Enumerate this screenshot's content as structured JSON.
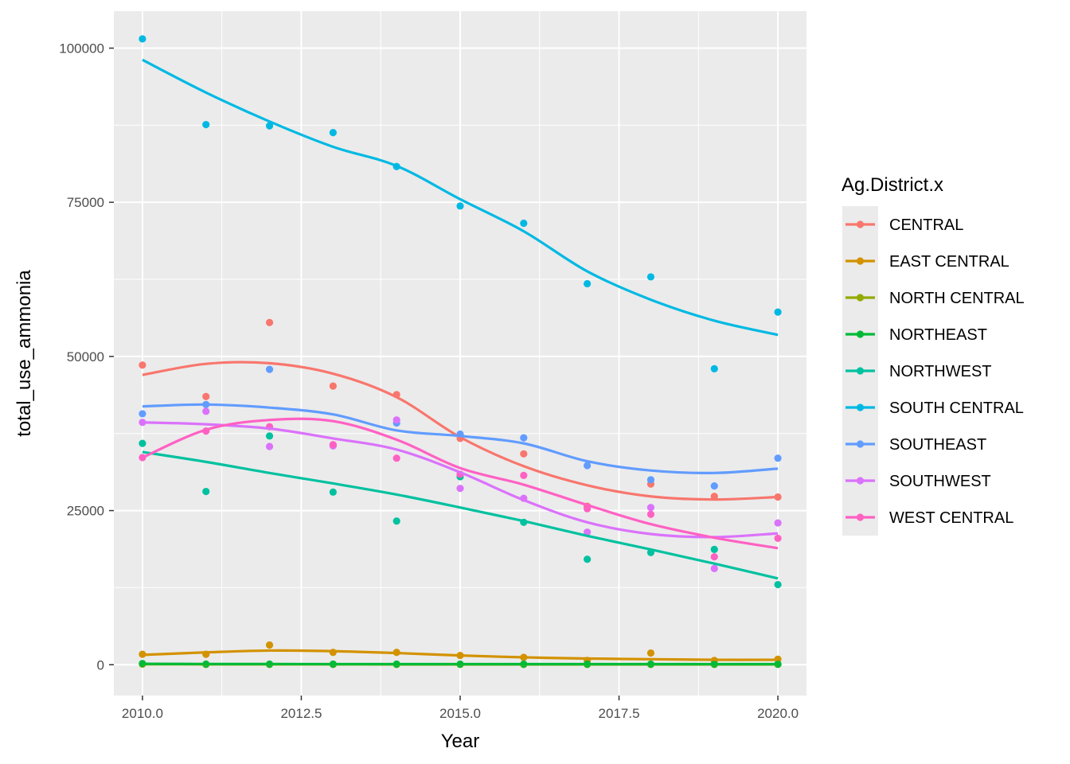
{
  "chart_data": {
    "type": "scatter",
    "title": "",
    "xlabel": "Year",
    "ylabel": "total_use_ammonia",
    "xlim": [
      2009.55,
      2020.45
    ],
    "ylim": [
      -5000,
      106000
    ],
    "x_ticks": [
      2010.0,
      2012.5,
      2015.0,
      2017.5,
      2020.0
    ],
    "x_tick_labels": [
      "2010.0",
      "2012.5",
      "2015.0",
      "2017.5",
      "2020.0"
    ],
    "y_ticks": [
      0,
      25000,
      50000,
      75000,
      100000
    ],
    "y_tick_labels": [
      "0",
      "25000",
      "50000",
      "75000",
      "100000"
    ],
    "grid": true,
    "smoothed_lines": true,
    "legend_title": "Ag.District.x",
    "legend_position": "right",
    "x": [
      2010,
      2011,
      2012,
      2013,
      2014,
      2015,
      2016,
      2017,
      2018,
      2019,
      2020
    ],
    "series": [
      {
        "name": "CENTRAL",
        "color": "#F8766D",
        "values": [
          48600,
          43500,
          55500,
          45200,
          43800,
          36700,
          34200,
          25700,
          29300,
          27300,
          27200
        ],
        "smooth": [
          47000,
          48800,
          48900,
          47200,
          43400,
          36900,
          32200,
          29100,
          27300,
          26800,
          27200
        ]
      },
      {
        "name": "EAST CENTRAL",
        "color": "#D39200",
        "values": [
          1700,
          1700,
          3200,
          2000,
          2000,
          1500,
          1200,
          700,
          1900,
          700,
          900
        ],
        "smooth": [
          1600,
          2000,
          2300,
          2200,
          1900,
          1500,
          1200,
          1000,
          900,
          800,
          800
        ]
      },
      {
        "name": "NORTH CENTRAL",
        "color": "#93AA00",
        "values": [
          100,
          50,
          50,
          50,
          50,
          50,
          50,
          50,
          50,
          50,
          50
        ],
        "smooth": [
          80,
          70,
          60,
          60,
          50,
          50,
          50,
          50,
          50,
          50,
          50
        ]
      },
      {
        "name": "NORTHEAST",
        "color": "#00BA38",
        "values": [
          200,
          100,
          100,
          100,
          100,
          100,
          100,
          100,
          100,
          100,
          100
        ],
        "smooth": [
          150,
          120,
          110,
          100,
          100,
          100,
          100,
          100,
          100,
          100,
          100
        ]
      },
      {
        "name": "NORTHWEST",
        "color": "#00C19F",
        "values": [
          35900,
          28100,
          37100,
          28000,
          23300,
          30500,
          23100,
          17100,
          18200,
          18700,
          13000
        ],
        "smooth": [
          34500,
          32900,
          31100,
          29400,
          27600,
          25500,
          23300,
          20900,
          18700,
          16400,
          14000
        ]
      },
      {
        "name": "SOUTH CENTRAL",
        "color": "#00B9E3",
        "values": [
          101500,
          87600,
          87400,
          86300,
          80800,
          74400,
          71600,
          61800,
          62900,
          48000,
          57200
        ],
        "smooth": [
          98100,
          92800,
          88100,
          84000,
          80900,
          75500,
          70300,
          63800,
          59200,
          55800,
          53500
        ]
      },
      {
        "name": "SOUTHEAST",
        "color": "#619CFF",
        "values": [
          40700,
          42200,
          47900,
          35600,
          39200,
          37400,
          36800,
          32300,
          30000,
          29000,
          33500
        ],
        "smooth": [
          41900,
          42200,
          41700,
          40600,
          38000,
          37100,
          35900,
          33000,
          31500,
          31100,
          31800
        ]
      },
      {
        "name": "SOUTHWEST",
        "color": "#DB72FB",
        "values": [
          39300,
          41100,
          35400,
          35500,
          39700,
          28600,
          27000,
          21500,
          25500,
          15600,
          23000
        ],
        "smooth": [
          39300,
          39000,
          38300,
          36700,
          34900,
          31200,
          26700,
          23100,
          21200,
          20700,
          21300
        ]
      },
      {
        "name": "WEST CENTRAL",
        "color": "#FF61C3",
        "values": [
          33600,
          37900,
          38600,
          35700,
          33500,
          30900,
          30700,
          25300,
          24400,
          17500,
          20500
        ],
        "smooth": [
          33600,
          38100,
          39700,
          39500,
          36500,
          31900,
          29200,
          25900,
          22800,
          20600,
          18900
        ]
      }
    ]
  }
}
